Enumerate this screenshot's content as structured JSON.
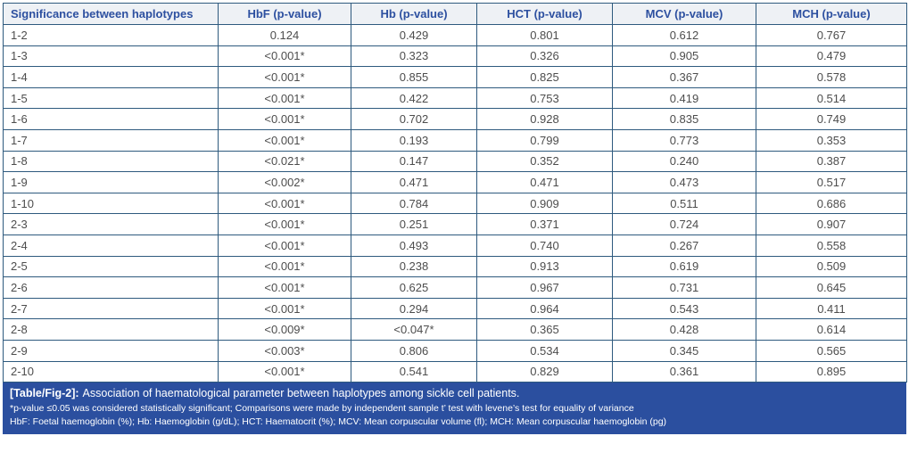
{
  "table": {
    "columns": [
      "Significance between haplotypes",
      "HbF (p-value)",
      "Hb (p-value)",
      "HCT (p-value)",
      "MCV (p-value)",
      "MCH (p-value)"
    ],
    "column_names": [
      "significance",
      "hbf",
      "hb",
      "hct",
      "mcv",
      "mch"
    ],
    "rows": [
      [
        "1-2",
        "0.124",
        "0.429",
        "0.801",
        "0.612",
        "0.767"
      ],
      [
        "1-3",
        "<0.001*",
        "0.323",
        "0.326",
        "0.905",
        "0.479"
      ],
      [
        "1-4",
        "<0.001*",
        "0.855",
        "0.825",
        "0.367",
        "0.578"
      ],
      [
        "1-5",
        "<0.001*",
        "0.422",
        "0.753",
        "0.419",
        "0.514"
      ],
      [
        "1-6",
        "<0.001*",
        "0.702",
        "0.928",
        "0.835",
        "0.749"
      ],
      [
        "1-7",
        "<0.001*",
        "0.193",
        "0.799",
        "0.773",
        "0.353"
      ],
      [
        "1-8",
        "<0.021*",
        "0.147",
        "0.352",
        "0.240",
        "0.387"
      ],
      [
        "1-9",
        "<0.002*",
        "0.471",
        "0.471",
        "0.473",
        "0.517"
      ],
      [
        "1-10",
        "<0.001*",
        "0.784",
        "0.909",
        "0.511",
        "0.686"
      ],
      [
        "2-3",
        "<0.001*",
        "0.251",
        "0.371",
        "0.724",
        "0.907"
      ],
      [
        "2-4",
        "<0.001*",
        "0.493",
        "0.740",
        "0.267",
        "0.558"
      ],
      [
        "2-5",
        "<0.001*",
        "0.238",
        "0.913",
        "0.619",
        "0.509"
      ],
      [
        "2-6",
        "<0.001*",
        "0.625",
        "0.967",
        "0.731",
        "0.645"
      ],
      [
        "2-7",
        "<0.001*",
        "0.294",
        "0.964",
        "0.543",
        "0.411"
      ],
      [
        "2-8",
        "<0.009*",
        "<0.047*",
        "0.365",
        "0.428",
        "0.614"
      ],
      [
        "2-9",
        "<0.003*",
        "0.806",
        "0.534",
        "0.345",
        "0.565"
      ],
      [
        "2-10",
        "<0.001*",
        "0.541",
        "0.829",
        "0.361",
        "0.895"
      ]
    ]
  },
  "caption": {
    "label": "[Table/Fig-2]:",
    "text": "Association of haematological parameter between haplotypes among sickle cell patients.",
    "note1": "*p-value ≤0.05 was considered statistically significant; Comparisons were made by independent sample t’ test with levene’s test for equality of variance",
    "note2": "HbF: Foetal haemoglobin (%); Hb: Haemoglobin (g/dL); HCT: Haematocrit (%); MCV: Mean corpuscular volume (fl); MCH: Mean corpuscular haemoglobin (pg)"
  },
  "colors": {
    "border": "#2e5a7e",
    "header_bg": "#eef1f5",
    "header_text": "#2d50a0",
    "footer_bg": "#2b4f9f",
    "body_text": "#4d4d4d"
  }
}
